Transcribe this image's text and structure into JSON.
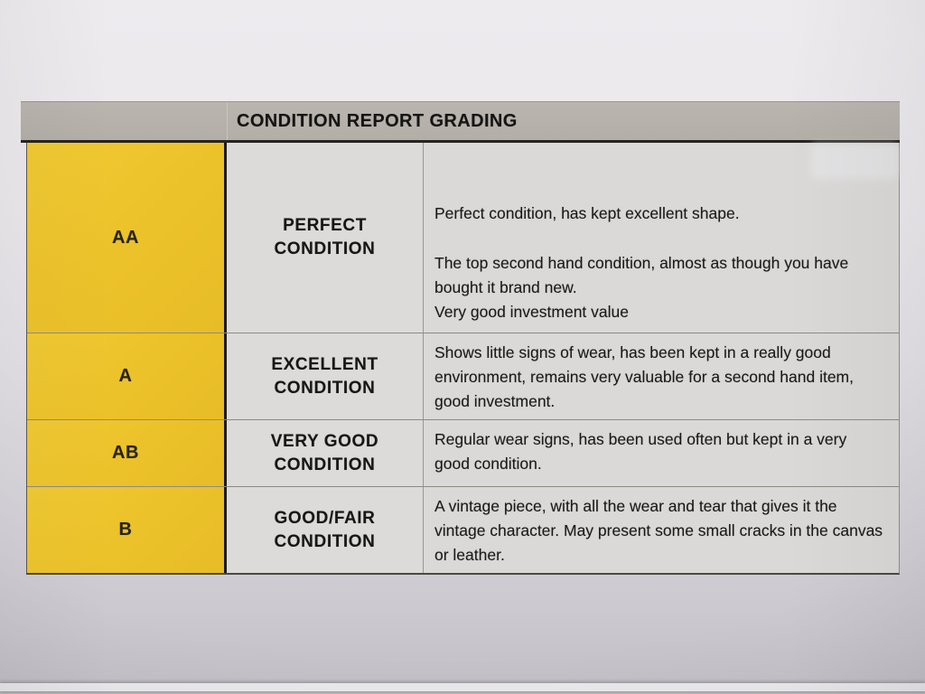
{
  "document": {
    "title": "CONDITION REPORT GRADING",
    "rows": [
      {
        "grade": "AA",
        "condition": "PERFECT CONDITION",
        "description": [
          "Perfect condition, has kept excellent shape.",
          "The top second hand condition, almost as though you have bought it brand new.",
          "Very good investment value"
        ]
      },
      {
        "grade": "A",
        "condition": "EXCELLENT CONDITION",
        "description": [
          "Shows little signs of wear, has been kept in a really good environment, remains very valuable for a second hand item, good investment."
        ]
      },
      {
        "grade": "AB",
        "condition": "VERY GOOD CONDITION",
        "description": [
          "Regular wear signs, has been used often but kept in a very good condition."
        ]
      },
      {
        "grade": "B",
        "condition": "GOOD/FAIR CONDITION",
        "description": [
          "A vintage piece, with all the wear and tear that gives it the vintage character. May present some small cracks in the canvas or leather."
        ]
      }
    ],
    "colors": {
      "grade_cell_yellow": "#edc32b",
      "header_bg": "#b6b1aa",
      "cell_bg": "#dcdbd9",
      "text": "#1b1b1b",
      "paper_bg": "#e3e1e5"
    }
  }
}
